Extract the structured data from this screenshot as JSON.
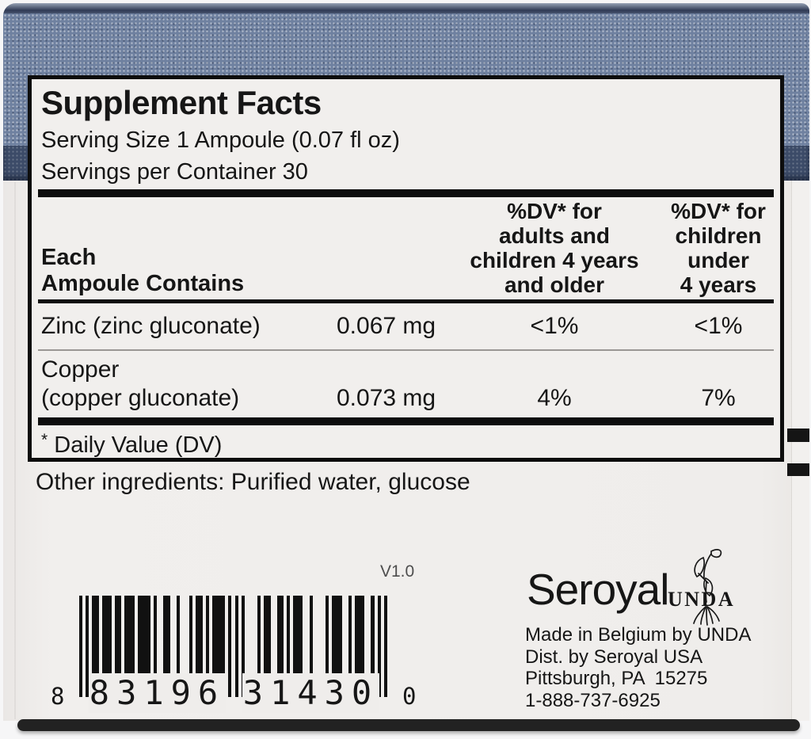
{
  "supplement_panel": {
    "title": "Supplement Facts",
    "serving_size": "Serving Size 1 Ampoule (0.07 fl oz)",
    "servings_per_container": "Servings per Container 30",
    "table": {
      "ingredient_header": [
        "Each",
        "Ampoule Contains"
      ],
      "dv_adults_header": [
        "%DV* for",
        "adults and",
        "children 4 years",
        "and older"
      ],
      "dv_children_header": [
        "%DV* for",
        "children",
        "under",
        "4 years"
      ],
      "rows": [
        {
          "name": [
            "Zinc (zinc gluconate)"
          ],
          "amount": "0.067 mg",
          "dv_adults": "<1%",
          "dv_children": "<1%"
        },
        {
          "name": [
            "Copper",
            "(copper gluconate)"
          ],
          "amount": "0.073 mg",
          "dv_adults": "4%",
          "dv_children": "7%"
        }
      ]
    },
    "footnote_marker": "*",
    "footnote_text": " Daily Value (DV)"
  },
  "other_ingredients": "Other ingredients: Purified water, glucose",
  "version_code": "V1.0",
  "barcode": {
    "value": "8 83196 31430 0",
    "lead_digit": "8",
    "group1": "83196",
    "group2": "31430",
    "trail_digit": "0",
    "upc_pattern": "101 0110111 0110111 0111101 0011001 0001011 0101111 01010 1000010 1100110 1011100 1000010 1110010 1110010 101"
  },
  "brand": {
    "name": "Seroyal",
    "secondary_name": "UNDA",
    "address_lines": [
      "Made in Belgium by UNDA",
      "Dist. by Seroyal USA",
      "Pittsburgh, PA  15275",
      "1-888-737-6925"
    ]
  },
  "colors": {
    "box_blue": "#6f81a0",
    "box_navy": "#3c4b68",
    "label_bg": "#f1efed",
    "text": "#161616"
  }
}
